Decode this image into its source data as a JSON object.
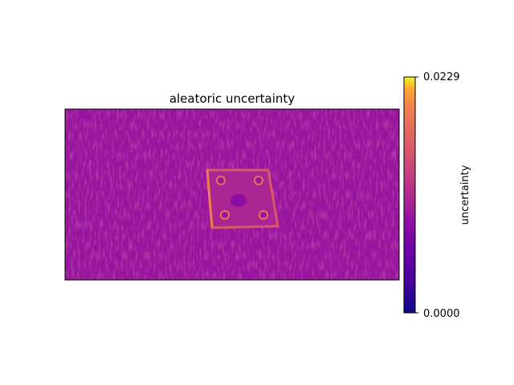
{
  "chart_data": {
    "type": "heatmap",
    "title": "aleatoric uncertainty",
    "xlabel": "",
    "ylabel": "",
    "colormap": "plasma",
    "colorbar": {
      "label": "uncertainty",
      "min": 0.0,
      "max": 0.0229,
      "tick_labels": [
        "0.0229",
        "0.0000"
      ]
    },
    "background_level": 0.0095,
    "feature": {
      "description_shape": "square plate",
      "edge_level": 0.016,
      "bright_edge_level": 0.0195,
      "interior_level": 0.011,
      "corner_hole_level": 0.0185
    },
    "grid": false,
    "axes_ticks": false
  }
}
